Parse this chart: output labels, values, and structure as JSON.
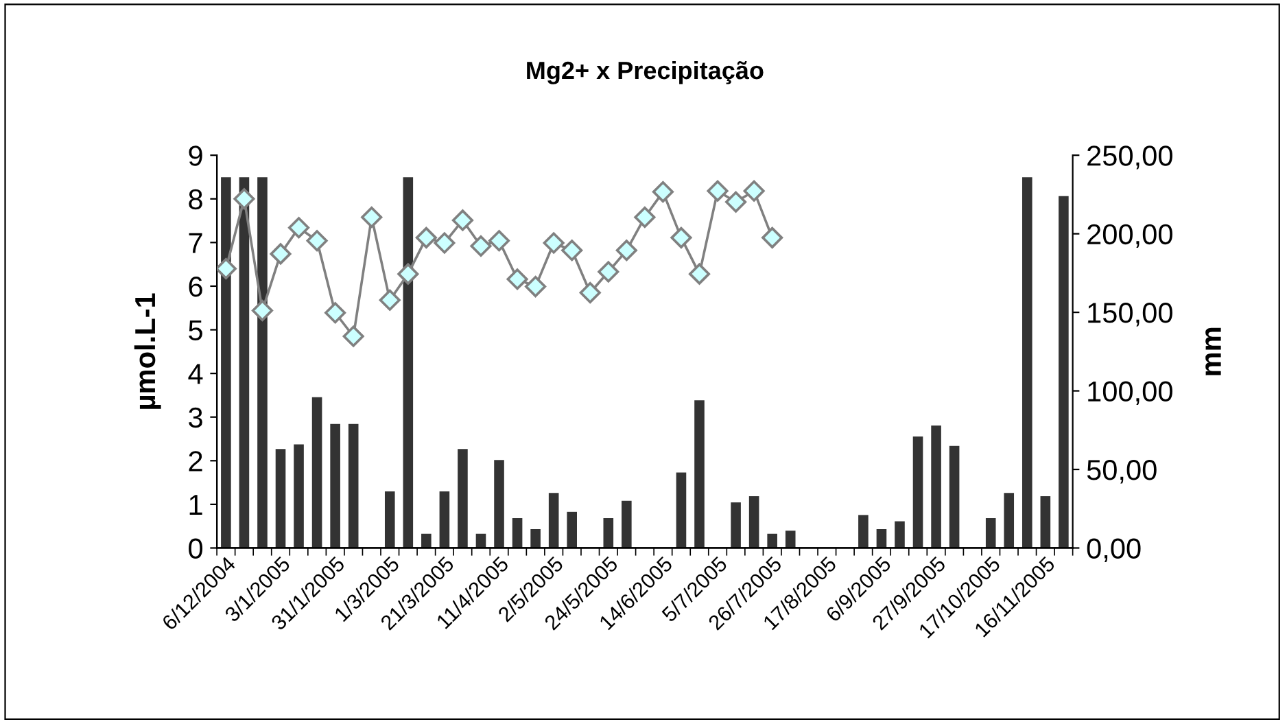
{
  "chart_data": {
    "type": "bar",
    "title": "Mg2+ x Precipitação",
    "ylabel": "µmol.L-1",
    "y2label": "mm",
    "categories": [
      "6/12/2004",
      null,
      null,
      "3/1/2005",
      null,
      null,
      "31/1/2005",
      null,
      null,
      "1/3/2005",
      null,
      null,
      "21/3/2005",
      null,
      null,
      "11/4/2005",
      null,
      null,
      "2/5/2005",
      null,
      null,
      "24/5/2005",
      null,
      null,
      "14/6/2005",
      null,
      null,
      "5/7/2005",
      null,
      null,
      "26/7/2005",
      null,
      null,
      "17/8/2005",
      null,
      null,
      "6/9/2005",
      null,
      null,
      "27/9/2005",
      null,
      null,
      "17/10/2005",
      null,
      null,
      "16/11/2005",
      null
    ],
    "series": [
      {
        "axis": "y2",
        "color": "#333333",
        "values": [
          236,
          236,
          236,
          63,
          66,
          96,
          79,
          79,
          null,
          36,
          236,
          9,
          36,
          63,
          9,
          56,
          19,
          12,
          35,
          23,
          null,
          19,
          30,
          null,
          null,
          48,
          94,
          null,
          29,
          33,
          9,
          11,
          null,
          null,
          null,
          21,
          12,
          17,
          71,
          78,
          65,
          null,
          19,
          35,
          236,
          33,
          224
        ]
      },
      {
        "type": "line",
        "color": "#808080",
        "marker": "diamond",
        "values": [
          6.4,
          8.0,
          5.44,
          6.74,
          7.34,
          7.04,
          5.39,
          4.85,
          7.58,
          5.68,
          6.28,
          7.11,
          6.99,
          7.51,
          6.92,
          7.04,
          6.16,
          5.99,
          6.99,
          6.82,
          5.85,
          6.33,
          6.82,
          7.58,
          8.16,
          7.11,
          6.28,
          8.18,
          7.93,
          8.18,
          7.11,
          null,
          null,
          null,
          null,
          null,
          null,
          null,
          null,
          null,
          null,
          null,
          null,
          null,
          null,
          null,
          null
        ]
      }
    ],
    "ylim": [
      0,
      9
    ],
    "yticks": [
      0,
      1,
      2,
      3,
      4,
      5,
      6,
      7,
      8,
      9
    ],
    "y2lim": [
      0,
      250
    ],
    "y2ticks": [
      {
        "value": 0,
        "label": "0,00"
      },
      {
        "value": 50,
        "label": "50,00"
      },
      {
        "value": 100,
        "label": "100,00"
      },
      {
        "value": 150,
        "label": "150,00"
      },
      {
        "value": 200,
        "label": "200,00"
      },
      {
        "value": 250,
        "label": "250,00"
      }
    ],
    "grid": false,
    "legend": false
  }
}
